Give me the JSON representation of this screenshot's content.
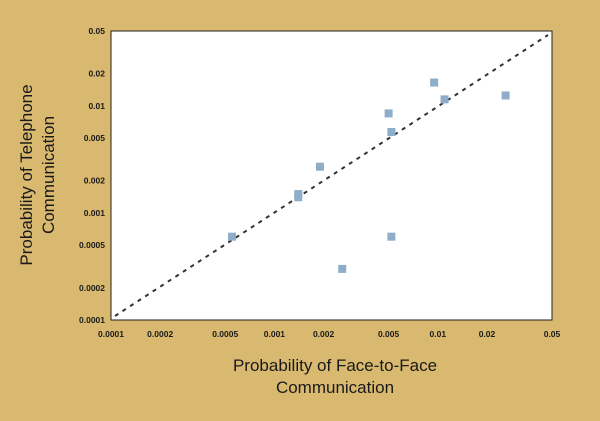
{
  "chart_data": {
    "type": "scatter",
    "title": "",
    "xlabel_lines": [
      "Probability of Face-to-Face",
      "Communication"
    ],
    "ylabel_lines": [
      "Probability of Telephone",
      "Communication"
    ],
    "xscale": "log",
    "yscale": "log",
    "xlim": [
      0.0001,
      0.05
    ],
    "ylim": [
      0.0001,
      0.05
    ],
    "x_ticks": [
      0.0001,
      0.0002,
      0.0005,
      0.001,
      0.002,
      0.005,
      0.01,
      0.02,
      0.05
    ],
    "x_tick_labels": [
      "0.0001",
      "0.0002",
      "0.0005",
      "0.001",
      "0.002",
      "0.005",
      "0.01",
      "0.02",
      "0.05"
    ],
    "y_ticks": [
      0.0001,
      0.0002,
      0.0005,
      0.001,
      0.002,
      0.005,
      0.01,
      0.02,
      0.05
    ],
    "y_tick_labels": [
      "0.0001",
      "0.0002",
      "0.0005",
      "0.001",
      "0.002",
      "0.005",
      "0.01",
      "0.02",
      "0.05"
    ],
    "grid": false,
    "legend": "none",
    "reference_line": {
      "style": "dashed",
      "from": [
        0.0001,
        0.0001
      ],
      "to": [
        0.05,
        0.05
      ]
    },
    "points": [
      {
        "x": 0.00055,
        "y": 0.0006
      },
      {
        "x": 0.0014,
        "y": 0.0015
      },
      {
        "x": 0.0014,
        "y": 0.0014
      },
      {
        "x": 0.0019,
        "y": 0.0027
      },
      {
        "x": 0.0026,
        "y": 0.0003
      },
      {
        "x": 0.005,
        "y": 0.0085
      },
      {
        "x": 0.0052,
        "y": 0.0057
      },
      {
        "x": 0.0052,
        "y": 0.0006
      },
      {
        "x": 0.0095,
        "y": 0.0165
      },
      {
        "x": 0.011,
        "y": 0.0115
      },
      {
        "x": 0.026,
        "y": 0.0125
      }
    ],
    "colors": {
      "background": "#d9b96f",
      "plot_area": "#ffffff",
      "marker": "#8eadc9",
      "line": "#333333",
      "text": "#1a1a1a"
    }
  }
}
